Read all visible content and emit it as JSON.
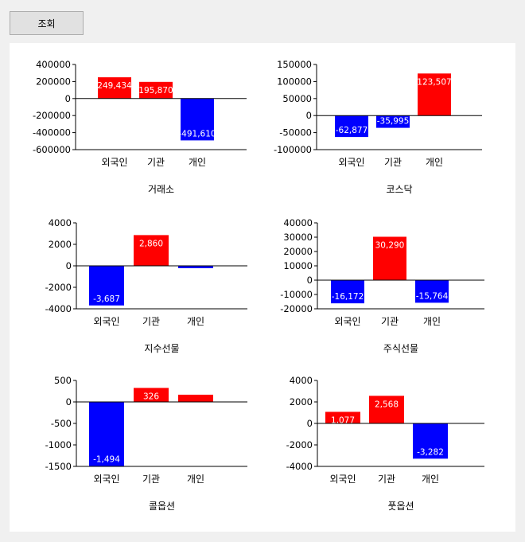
{
  "toolbar": {
    "query_label": "조회"
  },
  "colors": {
    "positive": "#ff0000",
    "negative": "#0000ff",
    "axis": "#000000",
    "label": "#ffffff"
  },
  "chart_data": [
    {
      "type": "bar",
      "title": "거래소",
      "categories": [
        "외국인",
        "기관",
        "개인"
      ],
      "values": [
        249434,
        195870,
        -491610
      ],
      "value_labels": [
        "249,434",
        "195,870",
        "-491,610"
      ],
      "ylim": [
        -600000,
        400000
      ],
      "yticks": [
        400000,
        200000,
        0,
        -200000,
        -400000,
        -600000
      ],
      "ytick_labels": [
        "400000",
        "200000",
        "0",
        "-200000",
        "-400000",
        "-600000"
      ]
    },
    {
      "type": "bar",
      "title": "코스닥",
      "categories": [
        "외국인",
        "기관",
        "개인"
      ],
      "values": [
        -62877,
        -35995,
        123507
      ],
      "value_labels": [
        "-62,877",
        "-35,995",
        "123,507"
      ],
      "ylim": [
        -100000,
        150000
      ],
      "yticks": [
        150000,
        100000,
        50000,
        0,
        -50000,
        -100000
      ],
      "ytick_labels": [
        "150000",
        "100000",
        "50000",
        "0",
        "-50000",
        "-100000"
      ]
    },
    {
      "type": "bar",
      "title": "지수선물",
      "categories": [
        "외국인",
        "기관",
        "개인"
      ],
      "values": [
        -3687,
        2860,
        -220
      ],
      "value_labels": [
        "-3,687",
        "2,860",
        ""
      ],
      "ylim": [
        -4000,
        4000
      ],
      "yticks": [
        4000,
        2000,
        0,
        -2000,
        -4000
      ],
      "ytick_labels": [
        "4000",
        "2000",
        "0",
        "-2000",
        "-4000"
      ]
    },
    {
      "type": "bar",
      "title": "주식선물",
      "categories": [
        "외국인",
        "기관",
        "개인"
      ],
      "values": [
        -16172,
        30290,
        -15764
      ],
      "value_labels": [
        "-16,172",
        "30,290",
        "-15,764"
      ],
      "ylim": [
        -20000,
        40000
      ],
      "yticks": [
        40000,
        30000,
        20000,
        10000,
        0,
        -10000,
        -20000
      ],
      "ytick_labels": [
        "40000",
        "30000",
        "20000",
        "10000",
        "0",
        "-10000",
        "-20000"
      ]
    },
    {
      "type": "bar",
      "title": "콜옵션",
      "categories": [
        "외국인",
        "기관",
        "개인"
      ],
      "values": [
        -1494,
        326,
        168
      ],
      "value_labels": [
        "-1,494",
        "326",
        ""
      ],
      "ylim": [
        -1500,
        500
      ],
      "yticks": [
        500,
        0,
        -500,
        -1000,
        -1500
      ],
      "ytick_labels": [
        "500",
        "0",
        "-500",
        "-1000",
        "-1500"
      ]
    },
    {
      "type": "bar",
      "title": "풋옵션",
      "categories": [
        "외국인",
        "기관",
        "개인"
      ],
      "values": [
        1077,
        2568,
        -3282
      ],
      "value_labels": [
        "1,077",
        "2,568",
        "-3,282"
      ],
      "ylim": [
        -4000,
        4000
      ],
      "yticks": [
        4000,
        2000,
        0,
        -2000,
        -4000
      ],
      "ytick_labels": [
        "4000",
        "2000",
        "0",
        "-2000",
        "-4000"
      ]
    }
  ]
}
